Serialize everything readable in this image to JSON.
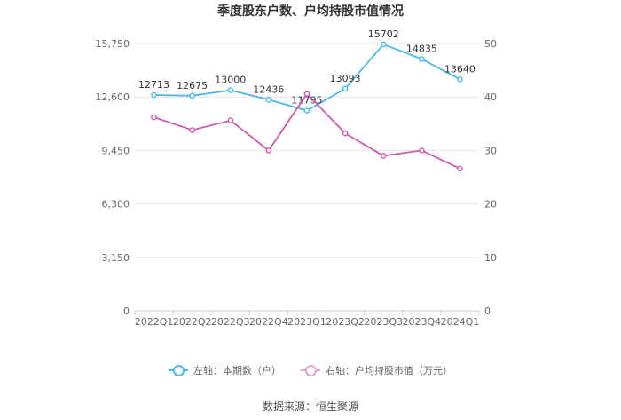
{
  "chart_data": {
    "type": "line",
    "title": "季度股东户数、户均持股市值情况",
    "categories": [
      "2022Q1",
      "2022Q2",
      "2022Q3",
      "2022Q4",
      "2023Q1",
      "2023Q2",
      "2023Q3",
      "2023Q4",
      "2024Q1"
    ],
    "y_left": {
      "ticks": [
        "0",
        "3,150",
        "6,300",
        "9,450",
        "12,600",
        "15,750"
      ],
      "range": [
        0,
        15750
      ]
    },
    "y_right": {
      "ticks": [
        "0",
        "10",
        "20",
        "30",
        "40",
        "50"
      ],
      "range": [
        0,
        50
      ]
    },
    "series": [
      {
        "name": "左轴：本期数（户）",
        "axis": "left",
        "color": "#4db8ea",
        "values": [
          12713,
          12675,
          13000,
          12436,
          11795,
          13093,
          15702,
          14835,
          13640
        ],
        "labels": [
          "12713",
          "12675",
          "13000",
          "12436",
          "11795",
          "13093",
          "15702",
          "14835",
          "13640"
        ]
      },
      {
        "name": "右轴：户均持股市值（万元）",
        "axis": "right",
        "color": "#cc5cad",
        "values": [
          36.2,
          33.8,
          35.6,
          30.0,
          40.6,
          33.2,
          29.0,
          30.0,
          26.6
        ]
      }
    ],
    "grid": true,
    "legend_position": "bottom"
  },
  "source": "数据来源：恒生聚源"
}
